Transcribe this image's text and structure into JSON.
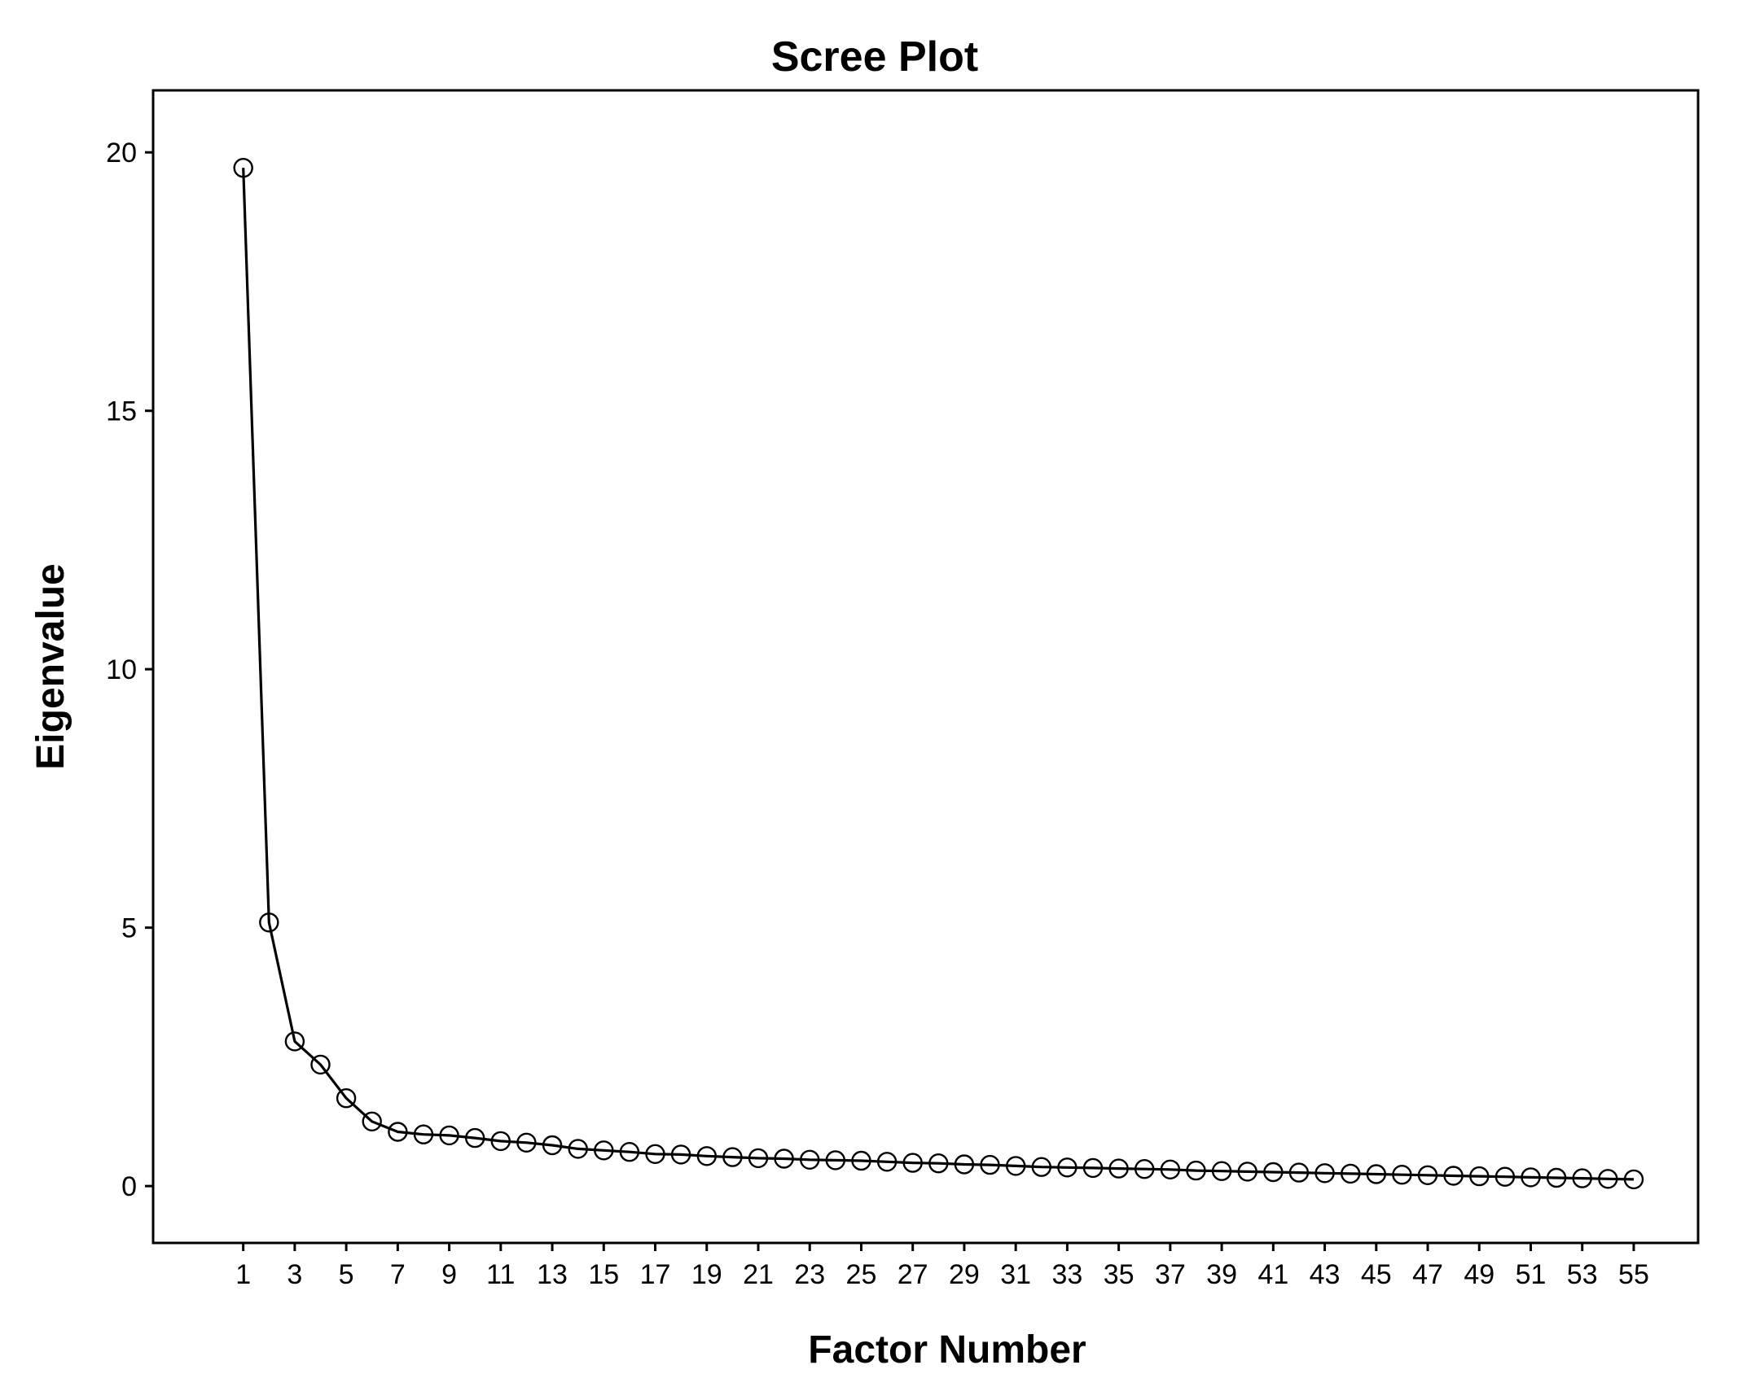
{
  "chart_data": {
    "type": "line",
    "title": "Scree Plot",
    "xlabel": "Factor Number",
    "ylabel": "Eigenvalue",
    "xlim": [
      -2.5,
      57.5
    ],
    "ylim": [
      -1.1,
      21.2
    ],
    "x_ticks": [
      1,
      3,
      5,
      7,
      9,
      11,
      13,
      15,
      17,
      19,
      21,
      23,
      25,
      27,
      29,
      31,
      33,
      35,
      37,
      39,
      41,
      43,
      45,
      47,
      49,
      51,
      53,
      55
    ],
    "y_ticks": [
      0,
      5,
      10,
      15,
      20
    ],
    "grid": false,
    "legend": "none",
    "marker": "open-circle",
    "line_color": "#000000",
    "series": [
      {
        "x": [
          1,
          2,
          3,
          4,
          5,
          6,
          7,
          8,
          9,
          10,
          11,
          12,
          13,
          14,
          15,
          16,
          17,
          18,
          19,
          20,
          21,
          22,
          23,
          24,
          25,
          26,
          27,
          28,
          29,
          30,
          31,
          32,
          33,
          34,
          35,
          36,
          37,
          38,
          39,
          40,
          41,
          42,
          43,
          44,
          45,
          46,
          47,
          48,
          49,
          50,
          51,
          52,
          53,
          54,
          55
        ],
        "values": [
          19.7,
          5.1,
          2.8,
          2.35,
          1.7,
          1.25,
          1.05,
          1.0,
          0.98,
          0.93,
          0.87,
          0.84,
          0.79,
          0.72,
          0.69,
          0.66,
          0.62,
          0.61,
          0.58,
          0.56,
          0.54,
          0.53,
          0.51,
          0.5,
          0.49,
          0.47,
          0.45,
          0.44,
          0.42,
          0.41,
          0.39,
          0.37,
          0.36,
          0.35,
          0.34,
          0.33,
          0.32,
          0.3,
          0.29,
          0.28,
          0.27,
          0.26,
          0.25,
          0.24,
          0.23,
          0.22,
          0.21,
          0.2,
          0.19,
          0.18,
          0.17,
          0.16,
          0.15,
          0.14,
          0.13
        ]
      }
    ]
  }
}
